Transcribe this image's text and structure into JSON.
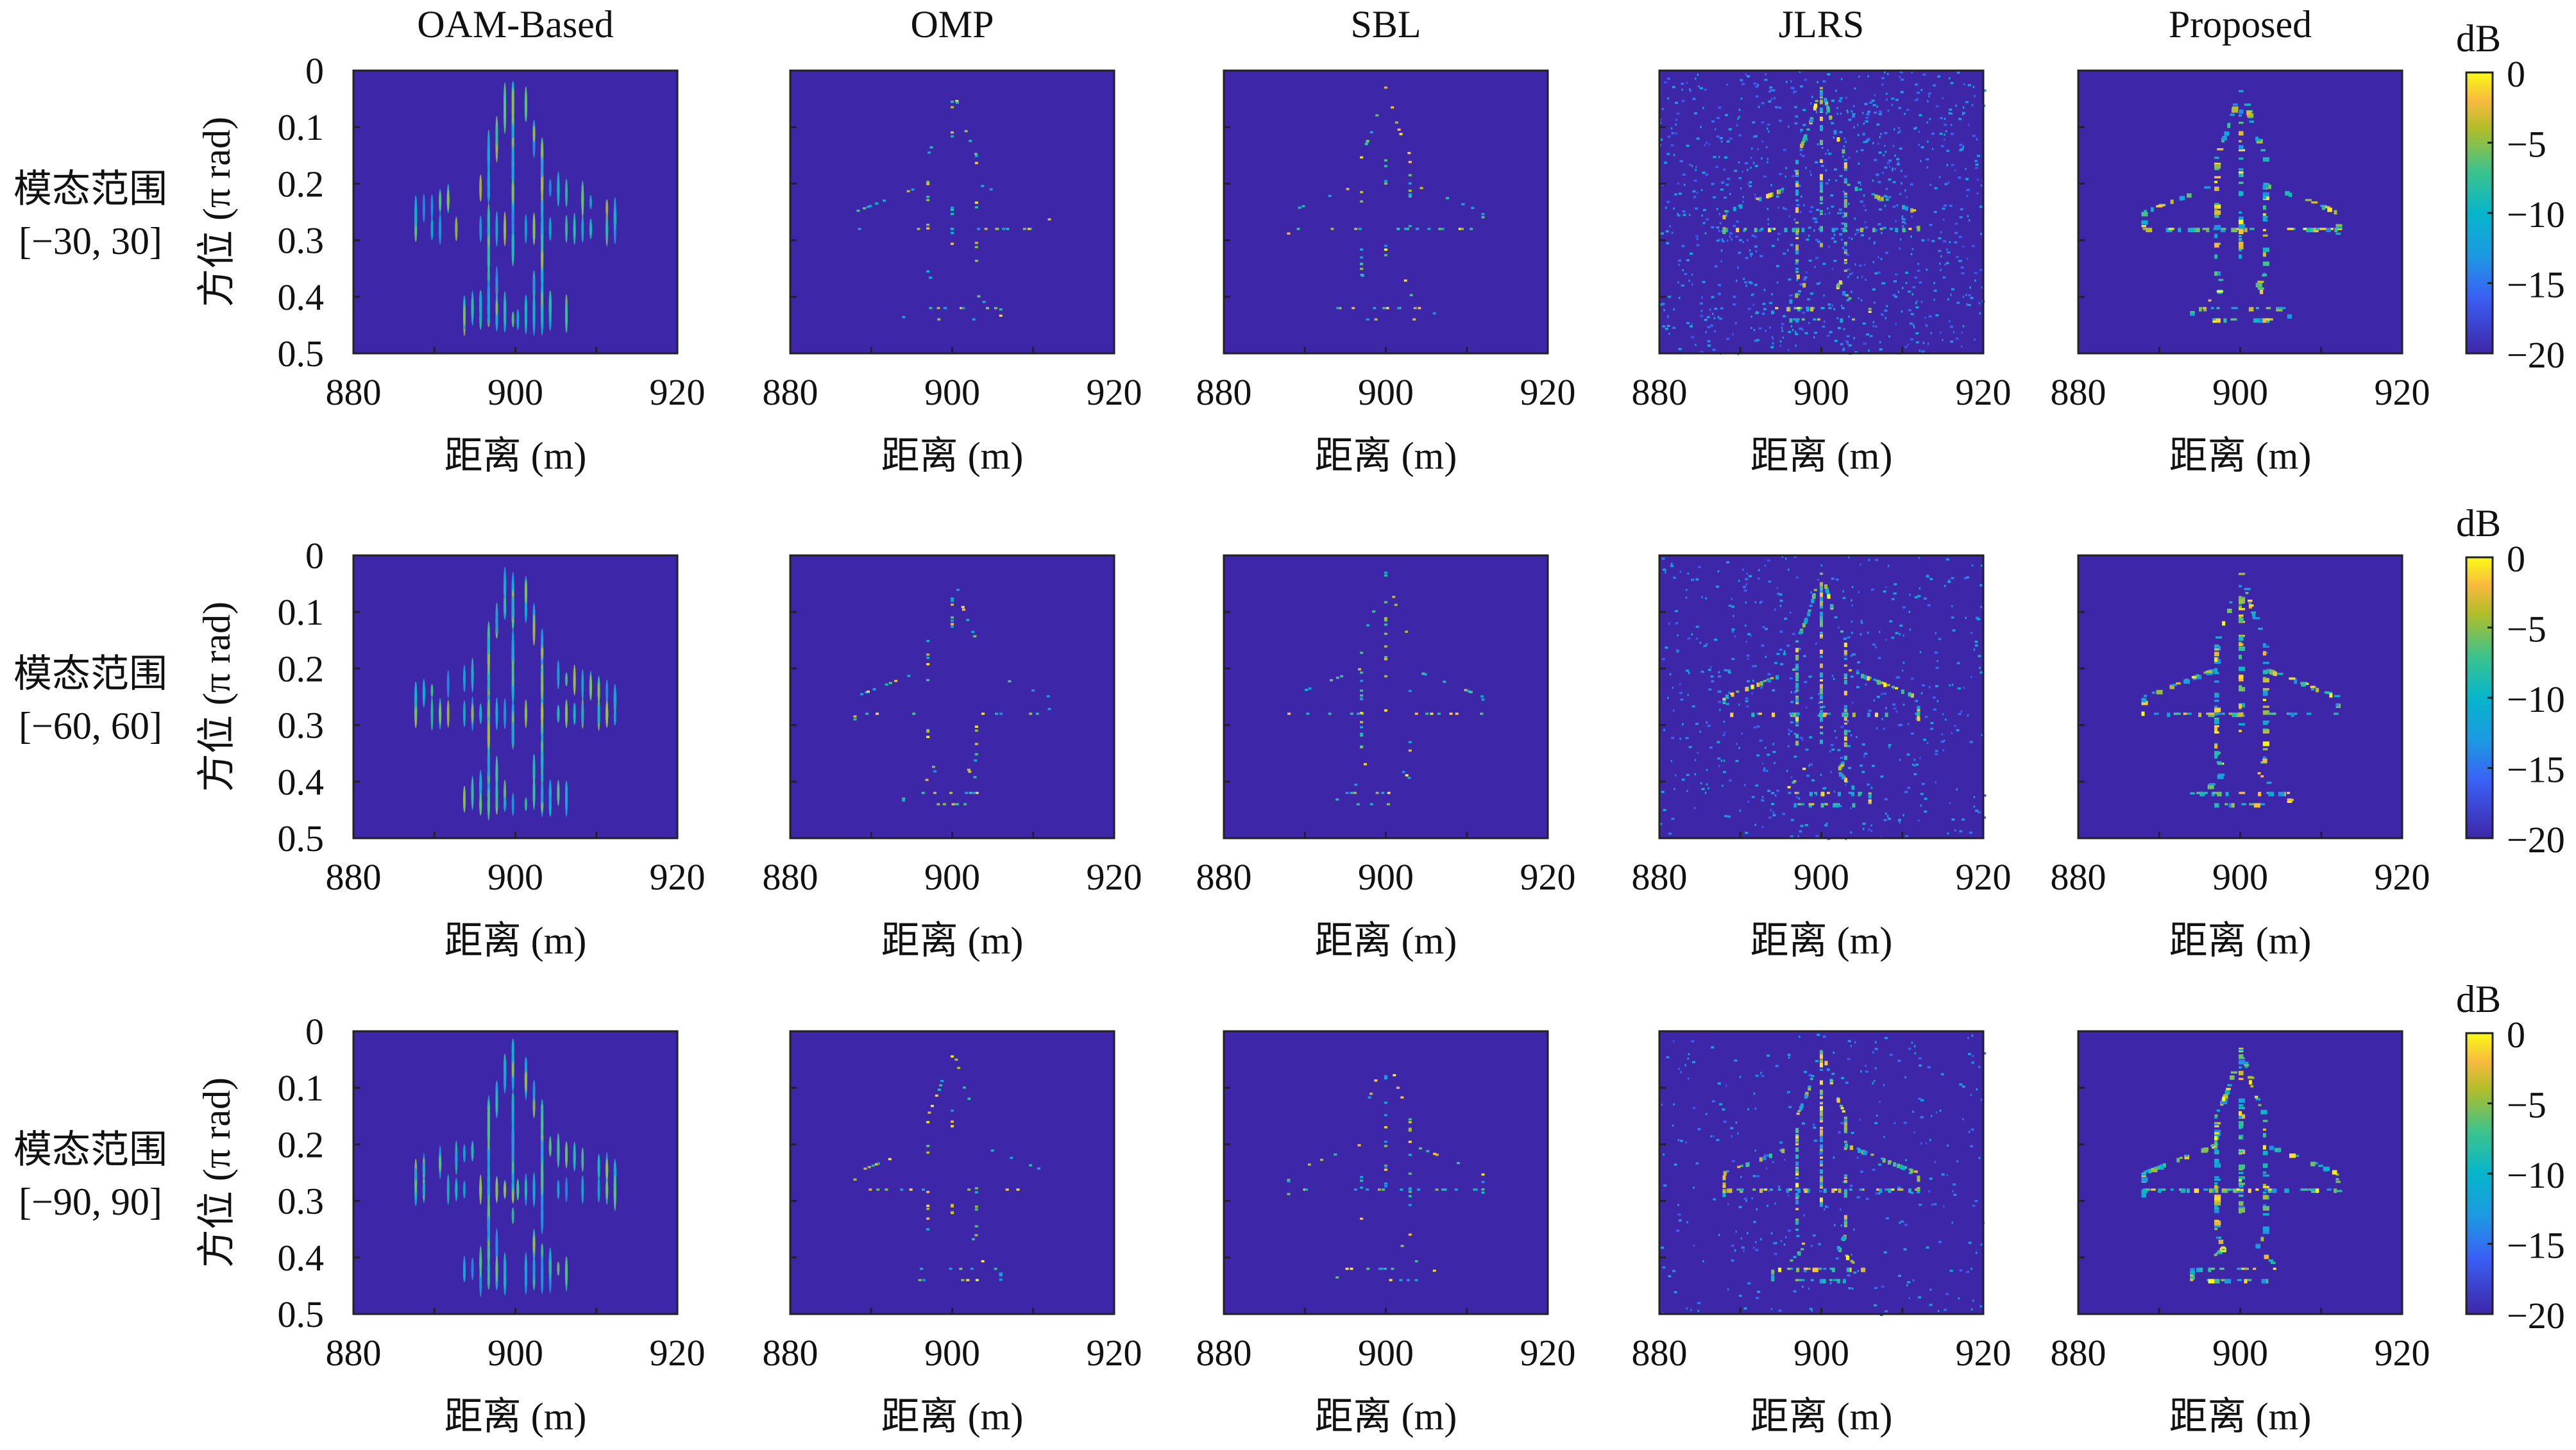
{
  "chart_data": {
    "type": "heatmap",
    "columns": [
      "OAM-Based",
      "OMP",
      "SBL",
      "JLRS",
      "Proposed"
    ],
    "rows": [
      {
        "label_line1": "模态范围",
        "label_line2": "[−30, 30]"
      },
      {
        "label_line1": "模态范围",
        "label_line2": "[−60, 60]"
      },
      {
        "label_line1": "模态范围",
        "label_line2": "[−90, 90]"
      }
    ],
    "xlabel": "距离 (m)",
    "ylabel": "方位 (π rad)",
    "xlim": [
      880,
      920
    ],
    "ylim": [
      0,
      0.5
    ],
    "y_reversed": true,
    "xticks": [
      "880",
      "900",
      "920"
    ],
    "xtick_values": [
      880,
      900,
      920
    ],
    "yticks": [
      "0",
      "0.1",
      "0.2",
      "0.3",
      "0.4",
      "0.5"
    ],
    "ytick_values": [
      0,
      0.1,
      0.2,
      0.3,
      0.4,
      0.5
    ],
    "colorbar": {
      "label": "dB",
      "range": [
        -20,
        0
      ],
      "ticks": [
        "0",
        "−5",
        "−10",
        "−15",
        "−20"
      ],
      "tick_values": [
        0,
        -5,
        -10,
        -15,
        -20
      ],
      "colormap": "parula"
    },
    "content": "airplane-shaped target image per method"
  },
  "colors": {
    "background": "#3e26a8",
    "colormap_stops": [
      "#3e26a8",
      "#3a60f6",
      "#1c9ae2",
      "#06b5cb",
      "#3dc38b",
      "#b1bd29",
      "#f8ba3e",
      "#f9fb15"
    ]
  }
}
